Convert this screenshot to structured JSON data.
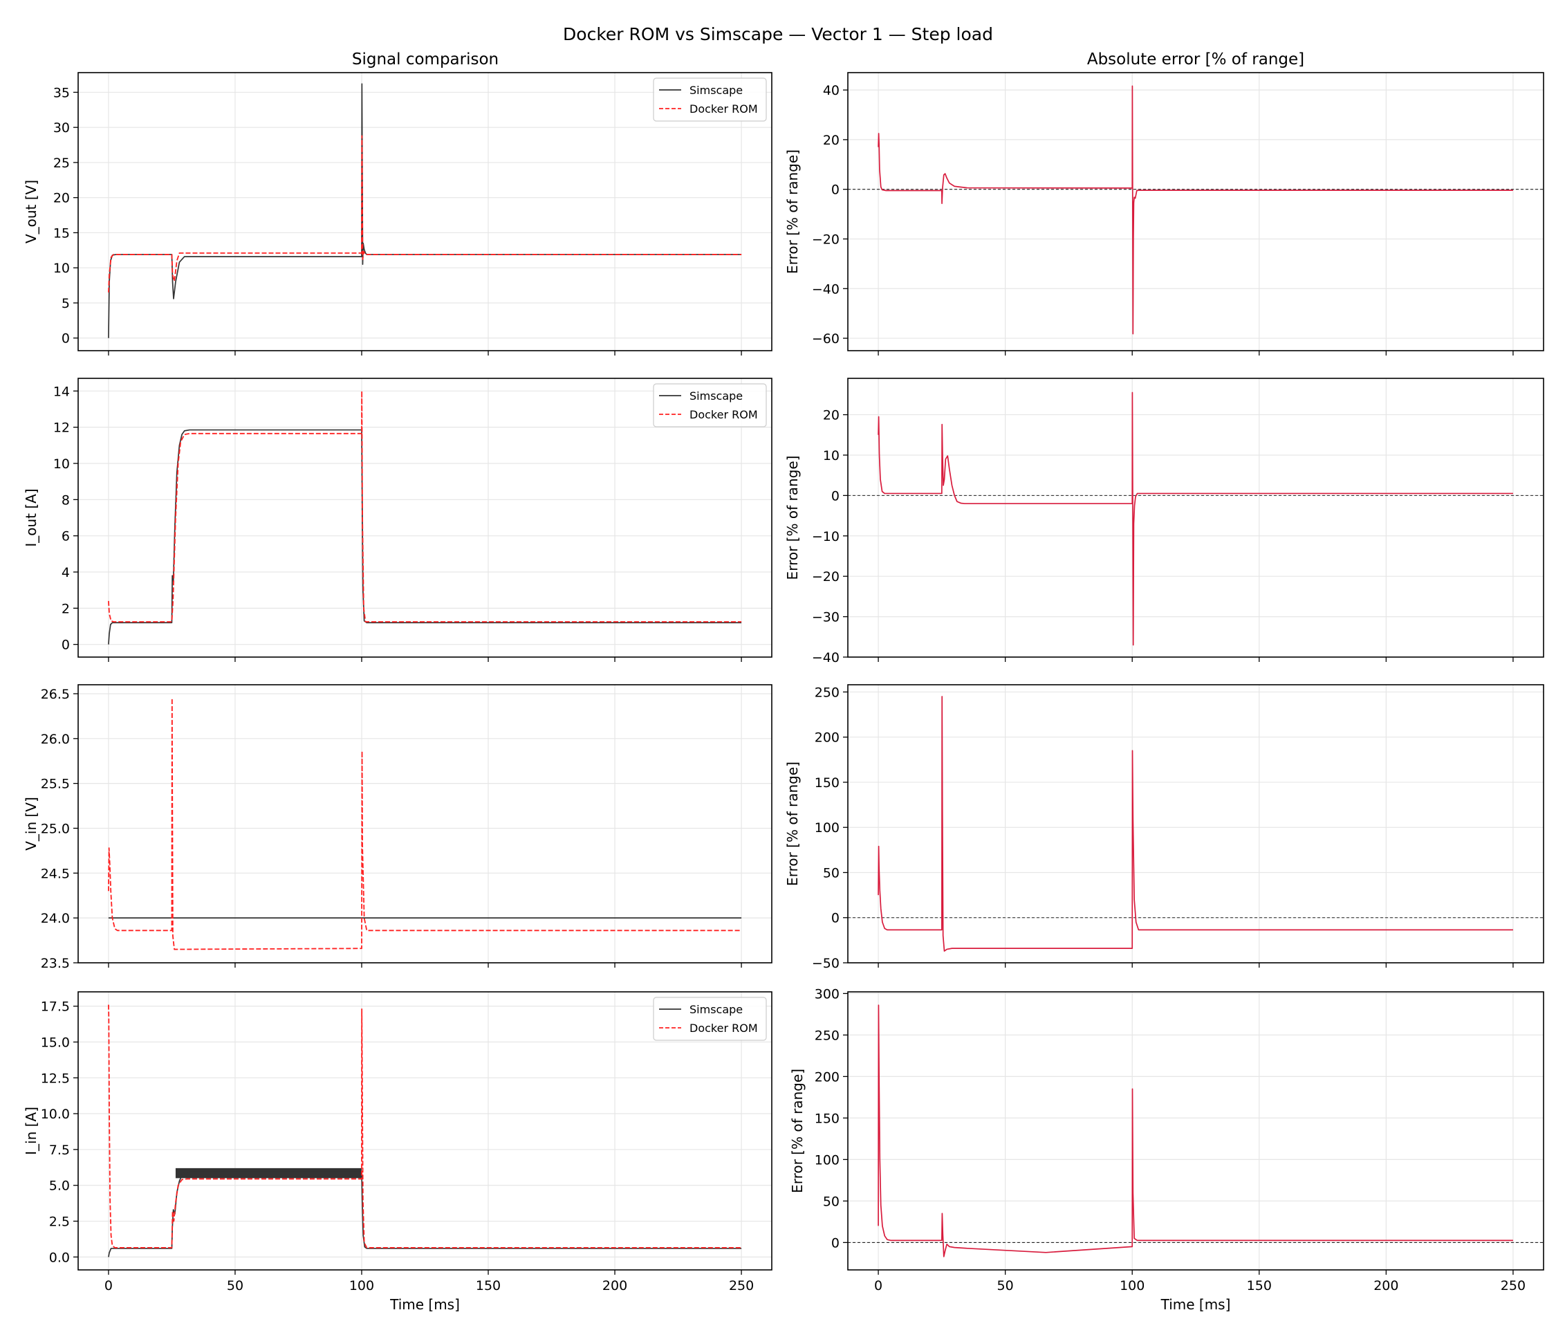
{
  "figure": {
    "suptitle": "Docker ROM vs Simscape — Vector 1 — Step load",
    "col_titles": [
      "Signal comparison",
      "Absolute error [% of range]"
    ],
    "colors": {
      "simscape": "#333333",
      "rom": "#ff2020",
      "error": "#d81b3c",
      "grid": "#e6e6e6",
      "zero": "#222222"
    }
  },
  "chart_data": [
    {
      "type": "line",
      "ylabel": "V_out [V]",
      "xlim": [
        -12,
        262
      ],
      "ylim": [
        -1.8,
        37.8
      ],
      "xticks": [
        0,
        50,
        100,
        150,
        200,
        250
      ],
      "yticks": [
        0,
        5,
        10,
        15,
        20,
        25,
        30,
        35
      ],
      "legend": "top-right",
      "series": [
        {
          "name": "Simscape",
          "style": "solid",
          "color": "#333333",
          "x": [
            0,
            0.3,
            0.8,
            1.5,
            3,
            25,
            25.3,
            25.7,
            26.5,
            28,
            30,
            100,
            100.1,
            100.4,
            100.6,
            101,
            101.5,
            102,
            250
          ],
          "y": [
            0,
            8,
            11,
            11.8,
            11.9,
            11.9,
            8,
            5.6,
            8,
            10.8,
            11.6,
            11.6,
            36.2,
            10.5,
            13.5,
            12.6,
            12.1,
            11.9,
            11.9
          ]
        },
        {
          "name": "Docker ROM",
          "style": "dashed",
          "color": "#ff2020",
          "x": [
            0,
            0.3,
            1,
            2,
            25,
            25.3,
            26,
            27,
            28,
            100,
            100.1,
            100.4,
            100.8,
            101.5,
            250
          ],
          "y": [
            6.5,
            9,
            11.5,
            11.9,
            11.9,
            9,
            8.1,
            11,
            12.1,
            12.1,
            28.8,
            11.2,
            12.3,
            11.9,
            11.9
          ]
        }
      ]
    },
    {
      "type": "line",
      "xlim": [
        -12,
        262
      ],
      "ylim": [
        -65,
        47
      ],
      "xticks": [
        0,
        50,
        100,
        150,
        200,
        250
      ],
      "yticks": [
        40,
        20,
        0,
        -20,
        -40,
        -60
      ],
      "yticklabels": [
        "40",
        "20",
        "0",
        "−20",
        "−40",
        "−60"
      ],
      "ylabel": "Error [% of range]",
      "zero_line": true,
      "series": [
        {
          "style": "solid",
          "color": "#d81b3c",
          "x": [
            0,
            0.15,
            0.3,
            0.5,
            1,
            1.5,
            3,
            25,
            25.05,
            25.3,
            25.8,
            26.3,
            27,
            28,
            30,
            35,
            100,
            100.05,
            100.15,
            100.3,
            100.45,
            100.6,
            100.8,
            101.2,
            101.8,
            102.5,
            250
          ],
          "y": [
            17,
            22.5,
            18,
            8,
            1,
            -0.2,
            -0.5,
            -0.5,
            -5.7,
            0.5,
            5.8,
            6.3,
            4.5,
            2.5,
            1.2,
            0.6,
            0.5,
            41.6,
            5,
            -58.2,
            -20,
            -5.5,
            -3.2,
            -3.6,
            -0.5,
            -0.4,
            -0.4
          ]
        }
      ]
    },
    {
      "type": "line",
      "ylabel": "I_out [A]",
      "xlim": [
        -12,
        262
      ],
      "ylim": [
        -0.7,
        14.7
      ],
      "xticks": [
        0,
        50,
        100,
        150,
        200,
        250
      ],
      "yticks": [
        0,
        2,
        4,
        6,
        8,
        10,
        12,
        14
      ],
      "legend": "top-right",
      "series": [
        {
          "name": "Simscape",
          "style": "solid",
          "color": "#333333",
          "x": [
            0,
            0.3,
            0.8,
            1.5,
            25,
            25.2,
            25.6,
            26.2,
            27,
            28,
            29,
            30,
            32,
            100,
            100.2,
            100.5,
            101,
            102,
            250
          ],
          "y": [
            0,
            0.6,
            1.1,
            1.2,
            1.2,
            3.8,
            3.5,
            6.5,
            9.5,
            11,
            11.6,
            11.8,
            11.85,
            11.85,
            8,
            3,
            1.3,
            1.2,
            1.2
          ]
        },
        {
          "name": "Docker ROM",
          "style": "dashed",
          "color": "#ff2020",
          "x": [
            0,
            0.3,
            1,
            2,
            25,
            25.5,
            26.5,
            27.5,
            28.5,
            30,
            32,
            100,
            100.05,
            100.3,
            100.8,
            101.5,
            250
          ],
          "y": [
            2.4,
            1.7,
            1.3,
            1.25,
            1.25,
            2.5,
            7,
            10,
            11.2,
            11.6,
            11.65,
            11.65,
            14,
            7,
            2,
            1.25,
            1.25
          ]
        }
      ]
    },
    {
      "type": "line",
      "xlim": [
        -12,
        262
      ],
      "ylim": [
        -40,
        29
      ],
      "xticks": [
        0,
        50,
        100,
        150,
        200,
        250
      ],
      "yticks": [
        20,
        10,
        0,
        -10,
        -20,
        -30,
        -40
      ],
      "yticklabels": [
        "20",
        "10",
        "0",
        "−10",
        "−20",
        "−30",
        "−40"
      ],
      "ylabel": "Error [% of range]",
      "zero_line": true,
      "series": [
        {
          "style": "solid",
          "color": "#d81b3c",
          "x": [
            0,
            0.15,
            0.4,
            0.8,
            1.5,
            2.5,
            25,
            25.1,
            25.3,
            25.6,
            26,
            26.5,
            27.3,
            28,
            29,
            30,
            31,
            32.5,
            34,
            100,
            100.05,
            100.2,
            100.4,
            100.6,
            100.9,
            101.3,
            102,
            250
          ],
          "y": [
            15,
            19.5,
            10,
            4,
            1,
            0.5,
            0.5,
            17.6,
            10,
            2.5,
            4,
            9,
            9.8,
            6.5,
            2.5,
            0,
            -1.5,
            -1.9,
            -2,
            -2,
            25.5,
            0,
            -37,
            -7,
            -2.5,
            -0.3,
            0.5,
            0.5
          ]
        }
      ]
    },
    {
      "type": "line",
      "ylabel": "V_in [V]",
      "xlim": [
        -12,
        262
      ],
      "ylim": [
        23.5,
        26.6
      ],
      "xticks": [
        0,
        50,
        100,
        150,
        200,
        250
      ],
      "yticks": [
        23.5,
        24,
        24.5,
        25,
        25.5,
        26,
        26.5
      ],
      "yticklabels": [
        "23.5",
        "24.0",
        "24.5",
        "25.0",
        "25.5",
        "26.0",
        "26.5"
      ],
      "series": [
        {
          "name": "Simscape",
          "style": "solid",
          "color": "#333333",
          "x": [
            0,
            250
          ],
          "y": [
            24.0,
            24.0
          ]
        },
        {
          "name": "Docker ROM",
          "style": "dashed",
          "color": "#ff2020",
          "x": [
            0,
            0.2,
            0.5,
            0.9,
            1.5,
            2.5,
            3.5,
            25,
            25.1,
            25.2,
            25.4,
            26,
            100,
            100.15,
            100.3,
            101,
            102,
            250
          ],
          "y": [
            24.3,
            24.78,
            24.6,
            24.3,
            24.0,
            23.88,
            23.86,
            23.86,
            26.45,
            25.5,
            23.8,
            23.65,
            23.66,
            25.86,
            24.8,
            24.0,
            23.86,
            23.86
          ]
        }
      ]
    },
    {
      "type": "line",
      "xlim": [
        -12,
        262
      ],
      "ylim": [
        -50,
        258
      ],
      "xticks": [
        0,
        50,
        100,
        150,
        200,
        250
      ],
      "yticks": [
        250,
        200,
        150,
        100,
        50,
        0,
        -50
      ],
      "yticklabels": [
        "250",
        "200",
        "150",
        "100",
        "50",
        "0",
        "−50"
      ],
      "ylabel": "Error [% of range]",
      "zero_line": true,
      "series": [
        {
          "style": "solid",
          "color": "#d81b3c",
          "x": [
            0,
            0.15,
            0.3,
            0.6,
            1,
            1.6,
            2.5,
            3.5,
            25,
            25.1,
            25.25,
            25.5,
            26,
            27,
            29,
            100,
            100.08,
            100.3,
            100.8,
            101.5,
            102.5,
            250
          ],
          "y": [
            25,
            79,
            55,
            30,
            10,
            -5,
            -12,
            -13.5,
            -13.5,
            245,
            120,
            -20,
            -37,
            -35,
            -34,
            -34,
            185,
            110,
            20,
            -5,
            -13.5,
            -13.5
          ]
        }
      ]
    },
    {
      "type": "line",
      "ylabel": "I_in [A]",
      "xlabel": "Time [ms]",
      "xlim": [
        -12,
        262
      ],
      "ylim": [
        -0.9,
        18.5
      ],
      "xticks": [
        0,
        50,
        100,
        150,
        200,
        250
      ],
      "yticks": [
        0,
        2.5,
        5,
        7.5,
        10,
        12.5,
        15,
        17.5
      ],
      "yticklabels": [
        "0.0",
        "2.5",
        "5.0",
        "7.5",
        "10.0",
        "12.5",
        "15.0",
        "17.5"
      ],
      "legend": "top-right",
      "series": [
        {
          "name": "Simscape",
          "style": "solid",
          "color": "#333333",
          "x": [
            0,
            0.3,
            1,
            25,
            25.2,
            25.6,
            26.2,
            27,
            28,
            29,
            30,
            32,
            100,
            100.2,
            100.6,
            101.2,
            102,
            250
          ],
          "y": [
            0,
            0.3,
            0.6,
            0.6,
            2,
            3.3,
            3,
            4.5,
            5.3,
            5.7,
            5.9,
            5.95,
            5.95,
            4,
            1.5,
            0.7,
            0.6,
            0.6
          ],
          "band": {
            "x0": 26.5,
            "x1": 100,
            "low": 5.5,
            "high": 6.2
          }
        },
        {
          "name": "Docker ROM",
          "style": "dashed",
          "color": "#ff2020",
          "x": [
            0,
            0.1,
            0.3,
            0.6,
            1,
            1.5,
            2.5,
            25,
            25.3,
            25.8,
            26.5,
            27.5,
            29,
            31,
            100,
            100.05,
            100.2,
            100.5,
            101,
            102,
            250
          ],
          "y": [
            17.6,
            16.8,
            10,
            4,
            1.5,
            0.8,
            0.65,
            0.65,
            3.2,
            2.5,
            3.8,
            5,
            5.4,
            5.45,
            5.45,
            17.3,
            13,
            4,
            1,
            0.65,
            0.65
          ]
        }
      ]
    },
    {
      "type": "line",
      "xlabel": "Time [ms]",
      "xlim": [
        -12,
        262
      ],
      "ylim": [
        -33,
        302
      ],
      "xticks": [
        0,
        50,
        100,
        150,
        200,
        250
      ],
      "yticks": [
        300,
        250,
        200,
        150,
        100,
        50,
        0
      ],
      "ylabel": "Error [% of range]",
      "zero_line": true,
      "series": [
        {
          "style": "solid",
          "color": "#d81b3c",
          "x": [
            0,
            0.1,
            0.3,
            0.6,
            1,
            1.6,
            2.5,
            3.5,
            5,
            25,
            25.15,
            25.4,
            25.8,
            26.3,
            27,
            28,
            30,
            35,
            66,
            100,
            100.08,
            100.3,
            100.8,
            102,
            250
          ],
          "y": [
            20,
            286,
            200,
            100,
            45,
            20,
            8,
            3.5,
            2.5,
            2.5,
            35,
            10,
            -17,
            -10,
            -2,
            -5,
            -6,
            -7,
            -12,
            -5,
            185,
            60,
            5,
            2.5,
            2.5
          ]
        }
      ]
    }
  ]
}
